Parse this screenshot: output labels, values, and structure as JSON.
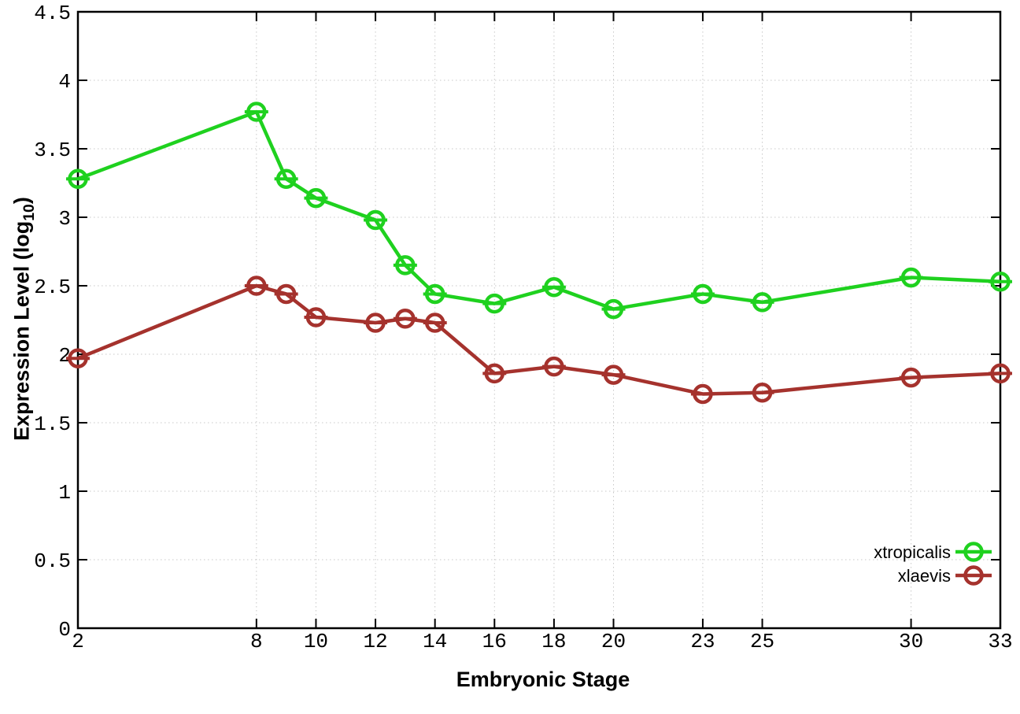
{
  "page": {
    "background": "#ffffff"
  },
  "chart_data": {
    "type": "line",
    "title": "",
    "xlabel": "Embryonic Stage",
    "ylabel": "Expression Level (log10)",
    "ylabel_parts": {
      "pre": "Expression Level (log",
      "sub": "10",
      "post": ")"
    },
    "x": [
      2,
      8,
      9,
      10,
      12,
      13,
      14,
      16,
      18,
      20,
      23,
      25,
      30,
      33
    ],
    "series": [
      {
        "name": "xtropicalis",
        "color": "#1fd11f",
        "values": [
          3.28,
          3.77,
          3.28,
          3.14,
          2.98,
          2.65,
          2.44,
          2.37,
          2.49,
          2.33,
          2.44,
          2.38,
          2.56,
          2.53
        ]
      },
      {
        "name": "xlaevis",
        "color": "#a5322d",
        "values": [
          1.97,
          2.5,
          2.44,
          2.27,
          2.23,
          2.26,
          2.23,
          1.86,
          1.91,
          1.85,
          1.71,
          1.72,
          1.83,
          1.86
        ]
      }
    ],
    "xlim": [
      2,
      33
    ],
    "ylim": [
      0,
      4.5
    ],
    "xticks": [
      2,
      8,
      10,
      12,
      14,
      16,
      18,
      20,
      23,
      25,
      30,
      33
    ],
    "yticks": [
      0,
      0.5,
      1,
      1.5,
      2,
      2.5,
      3,
      3.5,
      4,
      4.5
    ],
    "grid": true,
    "grid_color": "#c8c8c8",
    "axis_color": "#000000",
    "marker": "open-circle",
    "legend": {
      "position": "inside-bottom-right",
      "box": false,
      "labels": [
        "xtropicalis",
        "xlaevis"
      ]
    }
  }
}
